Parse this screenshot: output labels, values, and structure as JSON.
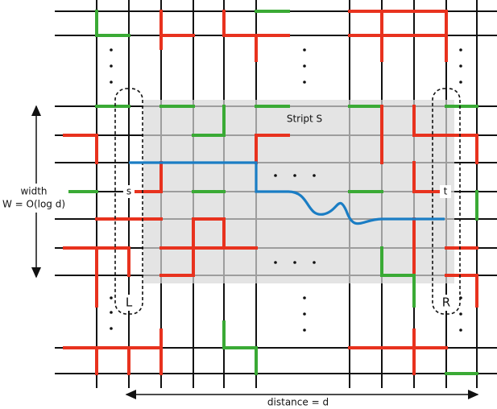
{
  "strip_label": "Stript S",
  "width_label": "width",
  "width_formula": "W = O(log d)",
  "source": "s",
  "target": "t",
  "left_label": "L",
  "right_label": "R",
  "distance_label": "distance = d"
}
